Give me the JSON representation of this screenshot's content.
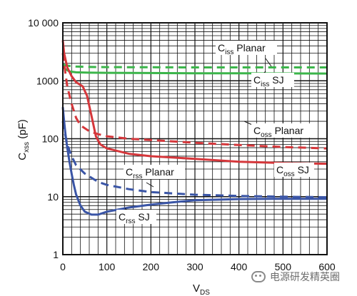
{
  "chart_data": {
    "type": "line",
    "xlabel_main": "V",
    "xlabel_sub": "DS",
    "ylabel_main": "C",
    "ylabel_sub": "xss",
    "ylabel_unit": " (pF)",
    "xlim": [
      0,
      600
    ],
    "ylim": [
      1,
      10000
    ],
    "yscale": "log",
    "grid": true,
    "x_ticks": [
      0,
      100,
      200,
      300,
      400,
      500,
      600
    ],
    "x_tick_labels": [
      "0",
      "100",
      "200",
      "300",
      "400",
      "500",
      "600"
    ],
    "y_ticks": [
      1,
      10,
      100,
      1000,
      10000
    ],
    "y_tick_labels": [
      "1",
      "10",
      "100",
      "1000",
      "10 000"
    ],
    "series": [
      {
        "name_main": "C",
        "name_sub": "iss",
        "name_suffix": " Planar",
        "color": "#3bb54a",
        "dash": true,
        "x": [
          0,
          5,
          15,
          30,
          60,
          100,
          200,
          300,
          400,
          500,
          600
        ],
        "y": [
          1900,
          1850,
          1800,
          1760,
          1730,
          1720,
          1710,
          1700,
          1700,
          1700,
          1700
        ]
      },
      {
        "name_main": "C",
        "name_sub": "iss",
        "name_suffix": " SJ",
        "color": "#3bb54a",
        "dash": false,
        "x": [
          0,
          5,
          15,
          30,
          60,
          100,
          200,
          300,
          400,
          500,
          600
        ],
        "y": [
          1750,
          1600,
          1450,
          1400,
          1380,
          1370,
          1360,
          1350,
          1345,
          1340,
          1335
        ]
      },
      {
        "name_main": "C",
        "name_sub": "oss",
        "name_suffix": " Planar",
        "color": "#d5373b",
        "dash": true,
        "x": [
          0,
          5,
          10,
          20,
          30,
          40,
          60,
          80,
          100,
          150,
          200,
          300,
          400,
          500,
          600
        ],
        "y": [
          3000,
          1500,
          800,
          400,
          230,
          170,
          135,
          120,
          110,
          100,
          95,
          85,
          78,
          72,
          68
        ]
      },
      {
        "name_main": "C",
        "name_sub": "oss",
        "name_suffix": " SJ",
        "color": "#d5373b",
        "dash": false,
        "x": [
          0,
          3,
          10,
          20,
          30,
          45,
          55,
          65,
          75,
          85,
          100,
          150,
          200,
          300,
          400,
          500,
          600
        ],
        "y": [
          5000,
          3000,
          1700,
          1200,
          950,
          800,
          550,
          250,
          110,
          80,
          68,
          55,
          50,
          45,
          40,
          38,
          37
        ]
      },
      {
        "name_main": "C",
        "name_sub": "rss",
        "name_suffix": " Planar",
        "color": "#3a55a6",
        "dash": true,
        "x": [
          0,
          5,
          10,
          20,
          30,
          50,
          80,
          100,
          150,
          200,
          300,
          400,
          500,
          600
        ],
        "y": [
          200,
          120,
          80,
          50,
          35,
          25,
          18,
          16,
          13.5,
          12,
          10.8,
          10.3,
          10,
          9.8
        ]
      },
      {
        "name_main": "C",
        "name_sub": "rss",
        "name_suffix": " SJ",
        "color": "#3a55a6",
        "dash": false,
        "x": [
          0,
          3,
          6,
          10,
          15,
          20,
          25,
          30,
          40,
          50,
          65,
          80,
          100,
          150,
          200,
          250,
          300,
          400,
          500,
          600
        ],
        "y": [
          350,
          200,
          120,
          70,
          40,
          25,
          16,
          11,
          7,
          5.5,
          4.9,
          4.9,
          5.5,
          6.5,
          7.3,
          8,
          8.7,
          9.1,
          9.2,
          9.2
        ]
      }
    ]
  },
  "watermark": "电源研发精英圈"
}
